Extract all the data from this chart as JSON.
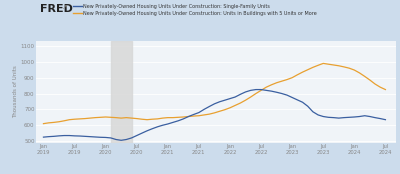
{
  "title_logo": "FRED",
  "legend1": "New Privately-Owned Housing Units Under Construction: Single-Family Units",
  "legend2": "New Privately-Owned Housing Units Under Construction: Units in Buildings with 5 Units or More",
  "ylabel": "Thousands of Units",
  "ylim": [
    490,
    1130
  ],
  "yticks": [
    500,
    600,
    700,
    800,
    900,
    1000,
    1100
  ],
  "fig_background": "#ccdcec",
  "plot_background": "#f0f4f8",
  "recession_start": 2020.083,
  "recession_end": 2020.417,
  "line1_color": "#3a5fa0",
  "line2_color": "#e8a030",
  "dates": [
    2019.0,
    2019.083,
    2019.167,
    2019.25,
    2019.333,
    2019.417,
    2019.5,
    2019.583,
    2019.667,
    2019.75,
    2019.833,
    2019.917,
    2020.0,
    2020.083,
    2020.167,
    2020.25,
    2020.333,
    2020.417,
    2020.5,
    2020.583,
    2020.667,
    2020.75,
    2020.833,
    2020.917,
    2021.0,
    2021.083,
    2021.167,
    2021.25,
    2021.333,
    2021.417,
    2021.5,
    2021.583,
    2021.667,
    2021.75,
    2021.833,
    2021.917,
    2022.0,
    2022.083,
    2022.167,
    2022.25,
    2022.333,
    2022.417,
    2022.5,
    2022.583,
    2022.667,
    2022.75,
    2022.833,
    2022.917,
    2023.0,
    2023.083,
    2023.167,
    2023.25,
    2023.333,
    2023.417,
    2023.5,
    2023.583,
    2023.667,
    2023.75,
    2023.833,
    2023.917,
    2024.0,
    2024.083,
    2024.167,
    2024.25,
    2024.333,
    2024.417,
    2024.5
  ],
  "single_family": [
    525,
    528,
    530,
    533,
    535,
    535,
    533,
    532,
    530,
    528,
    526,
    524,
    523,
    520,
    510,
    505,
    510,
    520,
    535,
    550,
    565,
    578,
    590,
    600,
    608,
    618,
    628,
    640,
    655,
    668,
    680,
    700,
    718,
    735,
    748,
    758,
    768,
    778,
    795,
    810,
    820,
    825,
    825,
    820,
    815,
    808,
    800,
    790,
    775,
    760,
    745,
    720,
    685,
    665,
    655,
    650,
    648,
    645,
    648,
    650,
    652,
    655,
    660,
    655,
    648,
    642,
    635
  ],
  "multifamily": [
    610,
    615,
    618,
    622,
    628,
    635,
    638,
    640,
    642,
    645,
    648,
    650,
    652,
    650,
    648,
    645,
    648,
    645,
    642,
    638,
    635,
    638,
    640,
    645,
    648,
    648,
    650,
    652,
    655,
    658,
    660,
    665,
    670,
    678,
    688,
    698,
    710,
    725,
    740,
    758,
    778,
    800,
    820,
    840,
    855,
    868,
    878,
    888,
    900,
    918,
    935,
    950,
    965,
    978,
    990,
    985,
    980,
    975,
    968,
    960,
    948,
    930,
    908,
    885,
    860,
    840,
    825
  ],
  "xtick_positions": [
    2019.0,
    2019.5,
    2020.0,
    2020.5,
    2021.0,
    2021.5,
    2022.0,
    2022.5,
    2023.0,
    2023.5,
    2024.0,
    2024.5
  ],
  "xtick_labels": [
    "Jan\n2019",
    "Jul\n2019",
    "Jan\n2020",
    "Jul\n2020",
    "Jan\n2021",
    "Jul\n2021",
    "Jan\n2022",
    "Jul\n2022",
    "Jan\n2023",
    "Jul\n2023",
    "Jan\n2024",
    "Jul\n2024"
  ],
  "xlim": [
    2018.88,
    2024.67
  ]
}
